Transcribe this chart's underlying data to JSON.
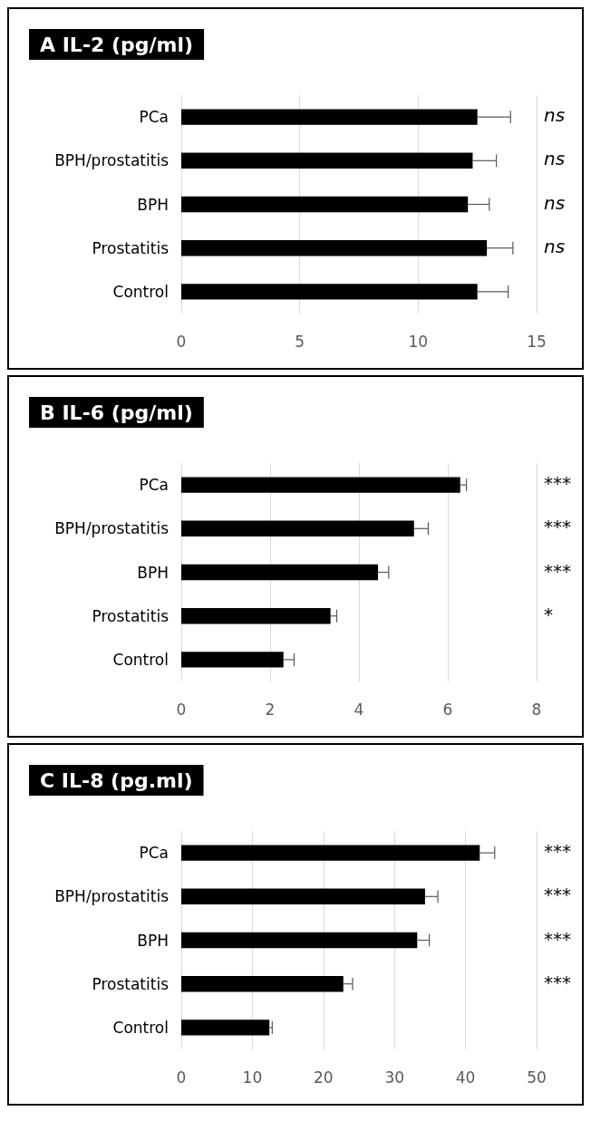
{
  "chart_data": [
    {
      "type": "bar",
      "orientation": "horizontal",
      "title": "A IL-2 (pg/ml)",
      "categories": [
        "PCa",
        "BPH/prostatitis",
        "BPH",
        "Prostatitis",
        "Control"
      ],
      "color": "#000000",
      "values": [
        12.5,
        12.3,
        12.1,
        12.9,
        12.5
      ],
      "errors": [
        [
          12.5,
          13.9
        ],
        [
          12.3,
          13.3
        ],
        [
          12.1,
          13.0
        ],
        [
          12.9,
          14.0
        ],
        [
          12.5,
          13.8
        ]
      ],
      "xlim": [
        0,
        15
      ],
      "xticks": [
        0,
        5,
        10,
        15
      ],
      "grid": "x",
      "annotations": [
        "ns",
        "ns",
        "ns",
        "ns"
      ]
    },
    {
      "type": "bar",
      "orientation": "horizontal",
      "title": "B IL-6 (pg/ml)",
      "categories": [
        "PCa",
        "BPH/prostatitis",
        "BPH",
        "Prostatitis",
        "Control"
      ],
      "color": "#000000",
      "values": [
        6.28,
        5.24,
        4.43,
        3.36,
        2.3
      ],
      "errors": [
        [
          6.28,
          6.42
        ],
        [
          5.24,
          5.56
        ],
        [
          4.43,
          4.67
        ],
        [
          3.36,
          3.5
        ],
        [
          2.3,
          2.54
        ]
      ],
      "xlim": [
        0,
        8
      ],
      "xticks": [
        0,
        2,
        4,
        6,
        8
      ],
      "grid": "x",
      "annotations": [
        "***",
        "***",
        "***",
        "*"
      ]
    },
    {
      "type": "bar",
      "orientation": "horizontal",
      "title": "C IL-8 (pg.ml)",
      "categories": [
        "PCa",
        "BPH/prostatitis",
        "BPH",
        "Prostatitis",
        "Control"
      ],
      "color": "#000000",
      "values": [
        42.0,
        34.3,
        33.2,
        22.8,
        12.4
      ],
      "errors": [
        [
          42.0,
          44.1
        ],
        [
          34.3,
          36.1
        ],
        [
          33.2,
          34.9
        ],
        [
          22.8,
          24.1
        ],
        [
          12.4,
          12.8
        ]
      ],
      "xlim": [
        0,
        50
      ],
      "xticks": [
        0,
        10,
        20,
        30,
        40,
        50
      ],
      "grid": "x",
      "annotations": [
        "***",
        "***",
        "***",
        "***"
      ]
    }
  ]
}
